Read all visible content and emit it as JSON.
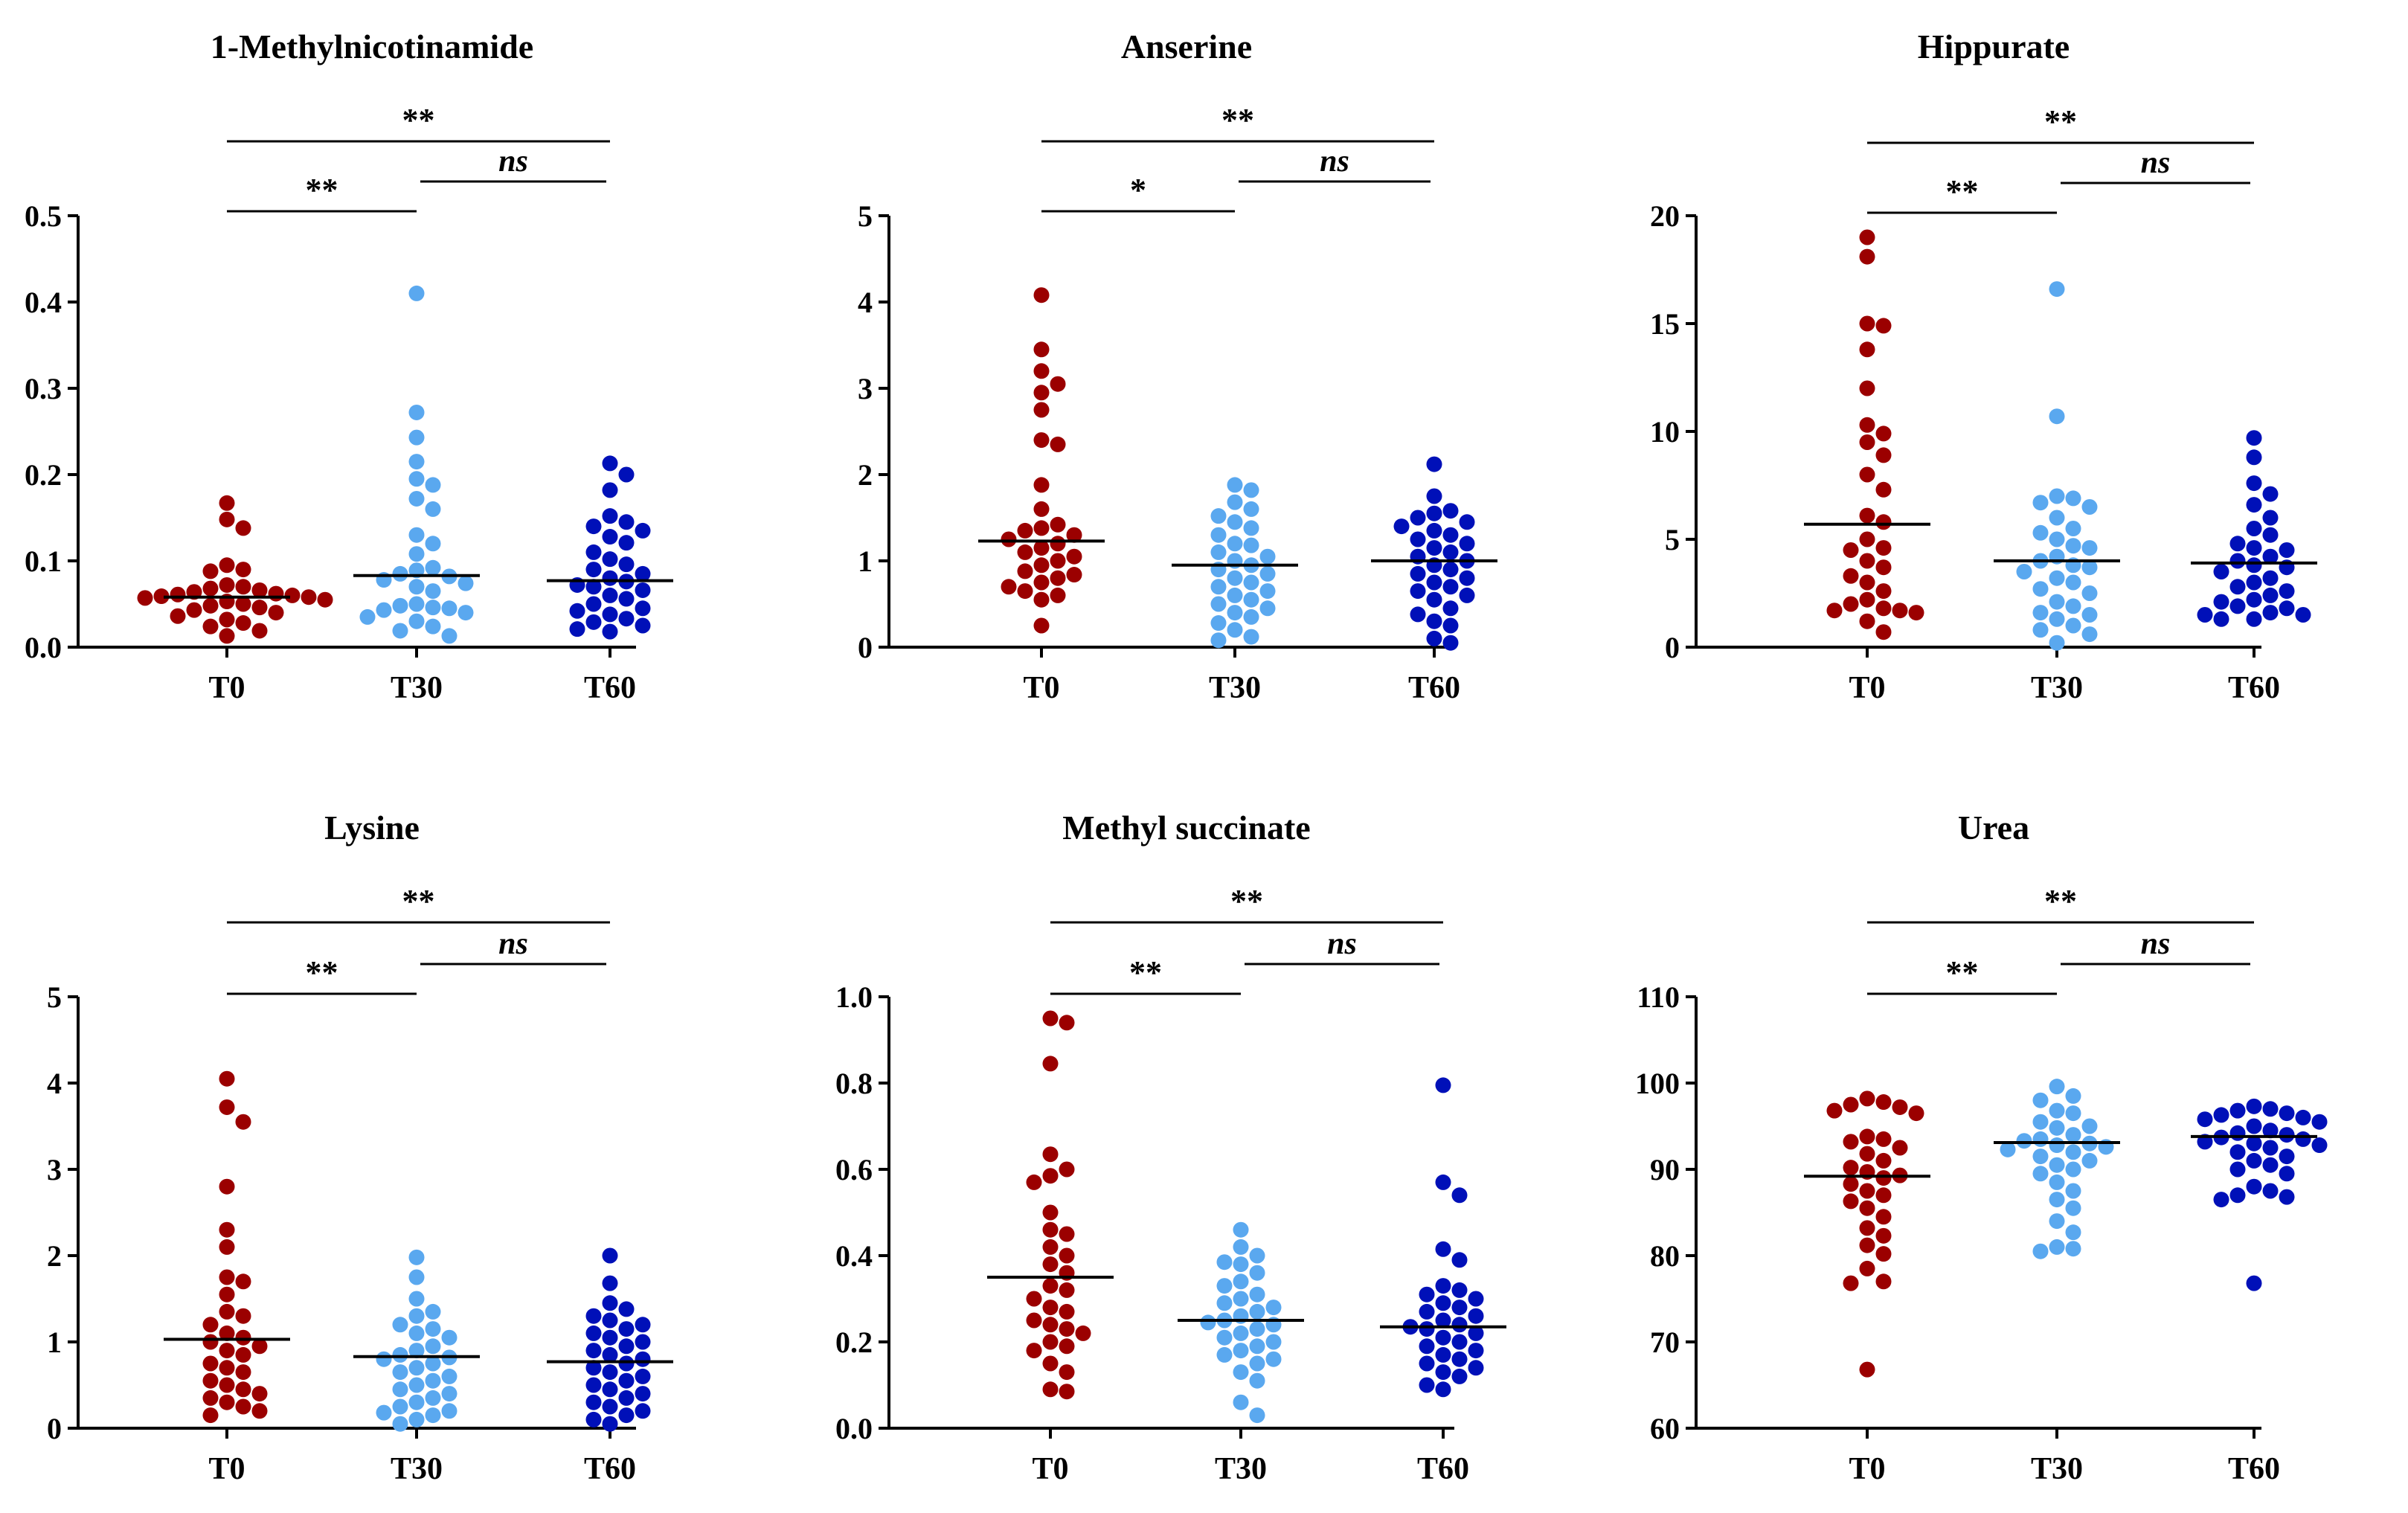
{
  "figure_colors": {
    "T0": "#9b0000",
    "T30": "#5aa8ef",
    "T60": "#0010b8",
    "axis": "#000000"
  },
  "chart_data": [
    {
      "type": "scatter",
      "title": "1-Methylnicotinamide",
      "categories": [
        "T0",
        "T30",
        "T60"
      ],
      "ylim": [
        0,
        0.5
      ],
      "yticks": [
        "0.0",
        "0.1",
        "0.2",
        "0.3",
        "0.4",
        "0.5"
      ],
      "means": [
        0.058,
        0.083,
        0.077
      ],
      "series": [
        {
          "name": "T0",
          "values": [
            0.167,
            0.148,
            0.138,
            0.095,
            0.09,
            0.088,
            0.072,
            0.07,
            0.068,
            0.066,
            0.064,
            0.062,
            0.061,
            0.06,
            0.059,
            0.058,
            0.057,
            0.055,
            0.053,
            0.05,
            0.048,
            0.046,
            0.043,
            0.04,
            0.036,
            0.032,
            0.028,
            0.024,
            0.019,
            0.013
          ]
        },
        {
          "name": "T30",
          "values": [
            0.41,
            0.272,
            0.243,
            0.215,
            0.195,
            0.188,
            0.172,
            0.16,
            0.13,
            0.12,
            0.108,
            0.092,
            0.089,
            0.085,
            0.082,
            0.078,
            0.074,
            0.07,
            0.065,
            0.05,
            0.048,
            0.046,
            0.045,
            0.043,
            0.04,
            0.035,
            0.03,
            0.024,
            0.019,
            0.013
          ]
        },
        {
          "name": "T60",
          "values": [
            0.213,
            0.2,
            0.182,
            0.152,
            0.145,
            0.14,
            0.135,
            0.128,
            0.121,
            0.11,
            0.102,
            0.096,
            0.09,
            0.085,
            0.08,
            0.076,
            0.072,
            0.07,
            0.066,
            0.06,
            0.056,
            0.05,
            0.045,
            0.042,
            0.038,
            0.033,
            0.029,
            0.025,
            0.021,
            0.018
          ]
        }
      ],
      "comparisons": [
        {
          "from": 0,
          "to": 2,
          "label": "**",
          "italic": false
        },
        {
          "from": 1,
          "to": 2,
          "label": "ns",
          "italic": true
        },
        {
          "from": 0,
          "to": 1,
          "label": "**",
          "italic": false
        }
      ]
    },
    {
      "type": "scatter",
      "title": "Anserine",
      "categories": [
        "T0",
        "T30",
        "T60"
      ],
      "ylim": [
        0,
        5
      ],
      "yticks": [
        "0",
        "1",
        "2",
        "3",
        "4",
        "5"
      ],
      "means": [
        1.23,
        0.95,
        1.0
      ],
      "series": [
        {
          "name": "T0",
          "values": [
            4.08,
            3.45,
            3.2,
            3.05,
            2.95,
            2.75,
            2.4,
            2.35,
            1.88,
            1.6,
            1.42,
            1.38,
            1.35,
            1.3,
            1.25,
            1.2,
            1.15,
            1.1,
            1.05,
            1.0,
            0.95,
            0.88,
            0.84,
            0.8,
            0.75,
            0.7,
            0.65,
            0.6,
            0.55,
            0.25
          ]
        },
        {
          "name": "T30",
          "values": [
            1.88,
            1.82,
            1.68,
            1.6,
            1.52,
            1.45,
            1.38,
            1.3,
            1.2,
            1.18,
            1.1,
            1.05,
            1.0,
            0.95,
            0.9,
            0.85,
            0.8,
            0.75,
            0.7,
            0.65,
            0.6,
            0.55,
            0.5,
            0.45,
            0.4,
            0.35,
            0.28,
            0.2,
            0.12,
            0.08
          ]
        },
        {
          "name": "T60",
          "values": [
            2.12,
            1.75,
            1.58,
            1.55,
            1.5,
            1.45,
            1.4,
            1.35,
            1.3,
            1.25,
            1.2,
            1.15,
            1.1,
            1.05,
            1.0,
            0.95,
            0.9,
            0.85,
            0.8,
            0.75,
            0.7,
            0.65,
            0.6,
            0.55,
            0.45,
            0.38,
            0.3,
            0.25,
            0.1,
            0.05
          ]
        }
      ],
      "comparisons": [
        {
          "from": 0,
          "to": 2,
          "label": "**",
          "italic": false
        },
        {
          "from": 1,
          "to": 2,
          "label": "ns",
          "italic": true
        },
        {
          "from": 0,
          "to": 1,
          "label": "*",
          "italic": false
        }
      ]
    },
    {
      "type": "scatter",
      "title": "Hippurate",
      "categories": [
        "T0",
        "T30",
        "T60"
      ],
      "ylim": [
        0,
        20
      ],
      "yticks": [
        "0",
        "5",
        "10",
        "15",
        "20"
      ],
      "means": [
        5.7,
        4.0,
        3.9
      ],
      "series": [
        {
          "name": "T0",
          "values": [
            19.0,
            18.1,
            15.0,
            14.9,
            13.8,
            12.0,
            10.3,
            9.9,
            9.5,
            8.9,
            8.0,
            7.3,
            6.1,
            5.8,
            5.0,
            4.6,
            4.5,
            4.0,
            3.7,
            3.3,
            3.0,
            2.6,
            2.2,
            2.0,
            1.8,
            1.7,
            1.7,
            1.6,
            1.2,
            0.7
          ]
        },
        {
          "name": "T30",
          "values": [
            16.6,
            10.7,
            7.0,
            6.9,
            6.7,
            6.5,
            6.0,
            5.5,
            5.3,
            5.0,
            4.7,
            4.6,
            4.2,
            4.0,
            3.8,
            3.7,
            3.5,
            3.2,
            3.0,
            2.7,
            2.5,
            2.1,
            1.9,
            1.6,
            1.5,
            1.3,
            1.0,
            0.8,
            0.6,
            0.2
          ]
        },
        {
          "name": "T60",
          "values": [
            9.7,
            8.8,
            7.6,
            7.1,
            6.6,
            6.0,
            5.5,
            5.2,
            4.8,
            4.6,
            4.5,
            4.2,
            4.0,
            3.8,
            3.7,
            3.5,
            3.2,
            3.0,
            2.8,
            2.6,
            2.4,
            2.2,
            2.1,
            1.9,
            1.8,
            1.6,
            1.5,
            1.5,
            1.3,
            1.3
          ]
        }
      ],
      "comparisons": [
        {
          "from": 0,
          "to": 2,
          "label": "**",
          "italic": false
        },
        {
          "from": 1,
          "to": 2,
          "label": "ns",
          "italic": true
        },
        {
          "from": 0,
          "to": 1,
          "label": "**",
          "italic": false
        }
      ]
    },
    {
      "type": "scatter",
      "title": "Lysine",
      "categories": [
        "T0",
        "T30",
        "T60"
      ],
      "ylim": [
        0,
        5
      ],
      "yticks": [
        "0",
        "1",
        "2",
        "3",
        "4",
        "5"
      ],
      "means": [
        1.03,
        0.83,
        0.77
      ],
      "series": [
        {
          "name": "T0",
          "values": [
            4.05,
            3.72,
            3.55,
            2.8,
            2.3,
            2.1,
            1.75,
            1.7,
            1.55,
            1.35,
            1.3,
            1.2,
            1.1,
            1.05,
            1.0,
            0.95,
            0.9,
            0.85,
            0.75,
            0.7,
            0.65,
            0.55,
            0.5,
            0.45,
            0.4,
            0.35,
            0.3,
            0.25,
            0.2,
            0.15
          ]
        },
        {
          "name": "T30",
          "values": [
            1.98,
            1.75,
            1.5,
            1.35,
            1.3,
            1.2,
            1.15,
            1.1,
            1.05,
            0.95,
            0.9,
            0.85,
            0.82,
            0.8,
            0.75,
            0.7,
            0.65,
            0.6,
            0.55,
            0.5,
            0.45,
            0.4,
            0.35,
            0.3,
            0.25,
            0.2,
            0.18,
            0.15,
            0.1,
            0.05
          ]
        },
        {
          "name": "T60",
          "values": [
            2.0,
            1.68,
            1.45,
            1.38,
            1.3,
            1.25,
            1.2,
            1.15,
            1.1,
            1.05,
            1.0,
            0.95,
            0.9,
            0.85,
            0.8,
            0.75,
            0.7,
            0.65,
            0.6,
            0.55,
            0.5,
            0.45,
            0.4,
            0.35,
            0.3,
            0.25,
            0.2,
            0.15,
            0.1,
            0.05
          ]
        }
      ],
      "comparisons": [
        {
          "from": 0,
          "to": 2,
          "label": "**",
          "italic": false
        },
        {
          "from": 1,
          "to": 2,
          "label": "ns",
          "italic": true
        },
        {
          "from": 0,
          "to": 1,
          "label": "**",
          "italic": false
        }
      ]
    },
    {
      "type": "scatter",
      "title": "Methyl succinate",
      "categories": [
        "T0",
        "T30",
        "T60"
      ],
      "ylim": [
        0,
        1.0
      ],
      "yticks": [
        "0.0",
        "0.2",
        "0.4",
        "0.6",
        "0.8",
        "1.0"
      ],
      "means": [
        0.35,
        0.25,
        0.235
      ],
      "series": [
        {
          "name": "T0",
          "values": [
            0.95,
            0.94,
            0.845,
            0.635,
            0.6,
            0.585,
            0.57,
            0.5,
            0.46,
            0.45,
            0.42,
            0.4,
            0.38,
            0.36,
            0.33,
            0.32,
            0.3,
            0.28,
            0.27,
            0.25,
            0.24,
            0.23,
            0.22,
            0.2,
            0.19,
            0.18,
            0.15,
            0.13,
            0.09,
            0.085
          ]
        },
        {
          "name": "T30",
          "values": [
            0.46,
            0.42,
            0.4,
            0.385,
            0.38,
            0.36,
            0.34,
            0.33,
            0.31,
            0.3,
            0.29,
            0.28,
            0.27,
            0.26,
            0.25,
            0.245,
            0.24,
            0.23,
            0.22,
            0.21,
            0.2,
            0.19,
            0.18,
            0.17,
            0.16,
            0.15,
            0.13,
            0.11,
            0.06,
            0.03
          ]
        },
        {
          "name": "T60",
          "values": [
            0.795,
            0.57,
            0.54,
            0.415,
            0.39,
            0.33,
            0.32,
            0.31,
            0.3,
            0.29,
            0.28,
            0.27,
            0.26,
            0.25,
            0.24,
            0.235,
            0.23,
            0.22,
            0.21,
            0.2,
            0.19,
            0.18,
            0.17,
            0.16,
            0.15,
            0.14,
            0.13,
            0.12,
            0.1,
            0.09
          ]
        }
      ],
      "comparisons": [
        {
          "from": 0,
          "to": 2,
          "label": "**",
          "italic": false
        },
        {
          "from": 1,
          "to": 2,
          "label": "ns",
          "italic": true
        },
        {
          "from": 0,
          "to": 1,
          "label": "**",
          "italic": false
        }
      ]
    },
    {
      "type": "scatter",
      "title": "Urea",
      "categories": [
        "T0",
        "T30",
        "T60"
      ],
      "ylim": [
        60,
        110
      ],
      "yticks": [
        "60",
        "70",
        "80",
        "90",
        "100",
        "110"
      ],
      "means": [
        89.2,
        93.1,
        93.8
      ],
      "series": [
        {
          "name": "T0",
          "values": [
            98.2,
            97.8,
            97.5,
            97.2,
            96.8,
            96.5,
            93.8,
            93.5,
            93.2,
            92.5,
            91.8,
            91.0,
            90.2,
            89.7,
            89.3,
            89.0,
            88.3,
            87.5,
            87.0,
            86.3,
            85.5,
            84.5,
            83.2,
            82.3,
            81.2,
            80.2,
            78.5,
            77.0,
            76.8,
            66.8
          ]
        },
        {
          "name": "T30",
          "values": [
            99.6,
            98.5,
            98.0,
            96.8,
            96.5,
            95.5,
            95.0,
            94.8,
            94.0,
            93.5,
            93.3,
            93.0,
            92.8,
            92.6,
            92.3,
            92.0,
            91.5,
            91.0,
            90.5,
            90.0,
            89.5,
            88.5,
            87.5,
            86.5,
            85.5,
            84.0,
            82.7,
            81.0,
            80.8,
            80.5
          ]
        },
        {
          "name": "T60",
          "values": [
            97.3,
            97.0,
            96.8,
            96.5,
            96.3,
            96.0,
            95.8,
            95.5,
            95.0,
            94.5,
            94.2,
            94.0,
            93.7,
            93.5,
            93.2,
            93.0,
            92.8,
            92.5,
            92.0,
            91.5,
            91.0,
            90.5,
            90.0,
            89.5,
            88.0,
            87.5,
            87.0,
            86.8,
            86.5,
            76.8
          ]
        }
      ],
      "comparisons": [
        {
          "from": 0,
          "to": 2,
          "label": "**",
          "italic": false
        },
        {
          "from": 1,
          "to": 2,
          "label": "ns",
          "italic": true
        },
        {
          "from": 0,
          "to": 1,
          "label": "**",
          "italic": false
        }
      ]
    }
  ]
}
